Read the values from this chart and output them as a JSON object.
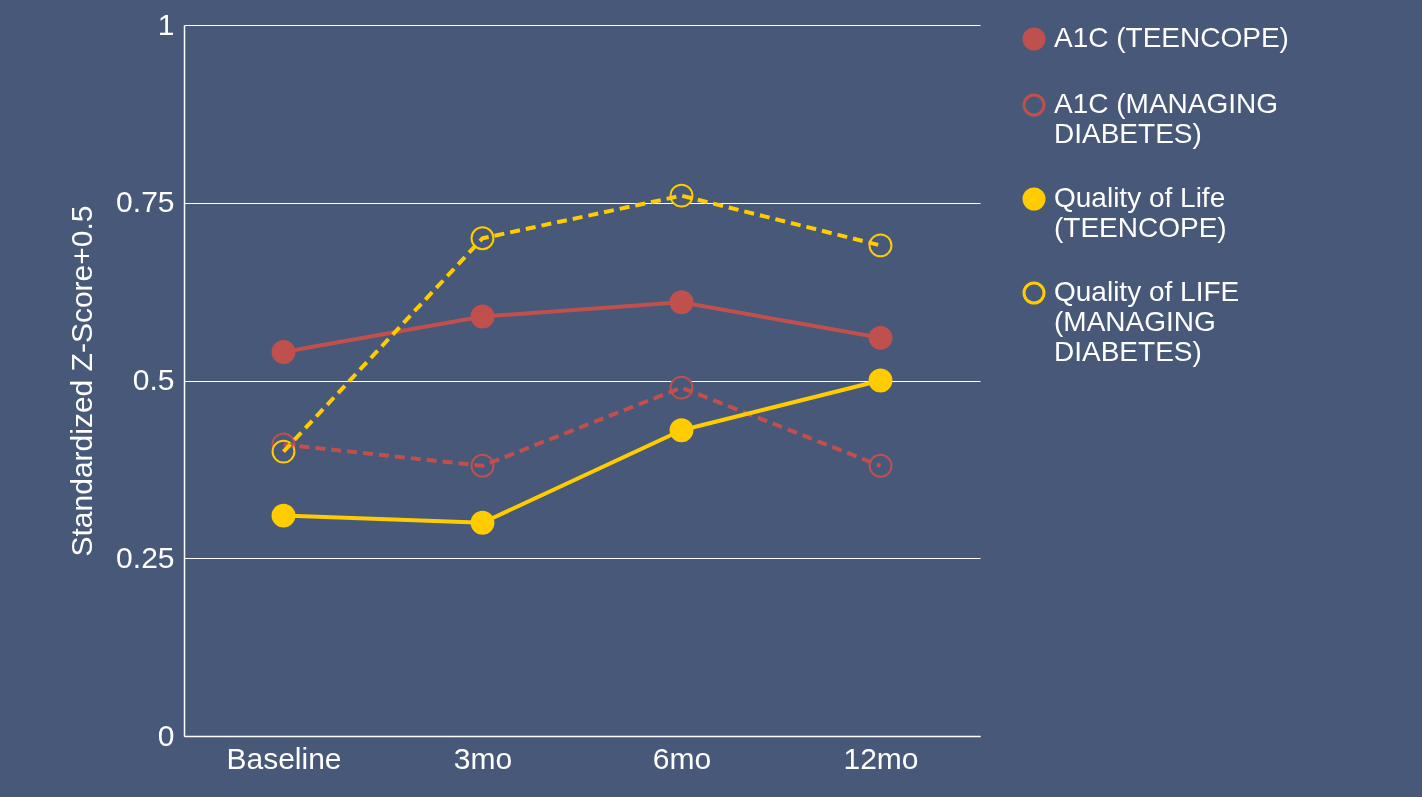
{
  "chart_data": {
    "type": "line",
    "ylabel": "Standardized Z-Score+0.5",
    "categories": [
      "Baseline",
      "3mo",
      "6mo",
      "12mo"
    ],
    "ylim": [
      0,
      1
    ],
    "yticks": [
      0,
      0.25,
      0.5,
      0.75,
      1
    ],
    "grid": "y",
    "legend": "right",
    "marker": "circle",
    "series": [
      {
        "name": "A1C (TEENCOPE)",
        "color": "#c0504d",
        "line_style": "solid",
        "values": [
          0.54,
          0.59,
          0.61,
          0.56
        ]
      },
      {
        "name": "A1C (MANAGING DIABETES)",
        "color": "#c0504d",
        "line_style": "dashed",
        "values": [
          0.41,
          0.38,
          0.49,
          0.38
        ]
      },
      {
        "name": "Quality of Life (TEENCOPE)",
        "color": "#ffcc00",
        "line_style": "solid",
        "values": [
          0.31,
          0.3,
          0.43,
          0.5
        ]
      },
      {
        "name": "Quality of LIFE (MANAGING DIABETES)",
        "color": "#ffcc00",
        "line_style": "dashed",
        "values": [
          0.4,
          0.7,
          0.76,
          0.69
        ]
      }
    ]
  }
}
